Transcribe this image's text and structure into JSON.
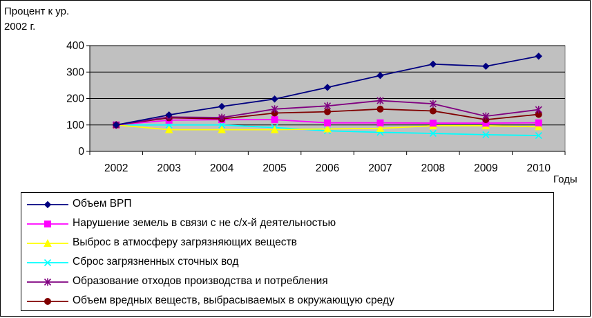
{
  "chart_data": {
    "type": "line",
    "ylabel_lines": [
      "Процент к ур.",
      "2002 г."
    ],
    "xlabel": "Годы",
    "x": [
      "2002",
      "2003",
      "2004",
      "2005",
      "2006",
      "2007",
      "2008",
      "2009",
      "2010"
    ],
    "yticks": [
      0,
      100,
      200,
      300,
      400
    ],
    "ylim": [
      0,
      400
    ],
    "grid": "horizontal",
    "plot_background": "#c0c0c0",
    "legend_position": "bottom",
    "series": [
      {
        "name": "Объем ВРП",
        "color": "#000080",
        "marker": "diamond",
        "values": [
          100,
          138,
          170,
          198,
          242,
          287,
          330,
          322,
          360
        ]
      },
      {
        "name": "Нарушение земель в связи с не с/х-й деятельностью",
        "color": "#ff00ff",
        "marker": "square",
        "values": [
          100,
          118,
          120,
          120,
          108,
          108,
          107,
          107,
          108
        ]
      },
      {
        "name": "Выброс в атмосферу загрязняющих веществ",
        "color": "#ffff00",
        "marker": "triangle",
        "values": [
          100,
          82,
          82,
          82,
          85,
          87,
          97,
          97,
          93
        ]
      },
      {
        "name": "Сброс загрязненных сточных вод",
        "color": "#00ffff",
        "marker": "x",
        "values": [
          100,
          100,
          100,
          90,
          78,
          72,
          68,
          63,
          60
        ]
      },
      {
        "name": "Образование отходов производства и потребления",
        "color": "#800080",
        "marker": "star",
        "values": [
          100,
          130,
          128,
          160,
          172,
          192,
          180,
          133,
          158
        ]
      },
      {
        "name": "Объем вредных веществ, выбрасываемых в окружающую среду",
        "color": "#800000",
        "marker": "circle",
        "values": [
          100,
          127,
          123,
          145,
          150,
          160,
          153,
          120,
          140
        ]
      }
    ]
  }
}
